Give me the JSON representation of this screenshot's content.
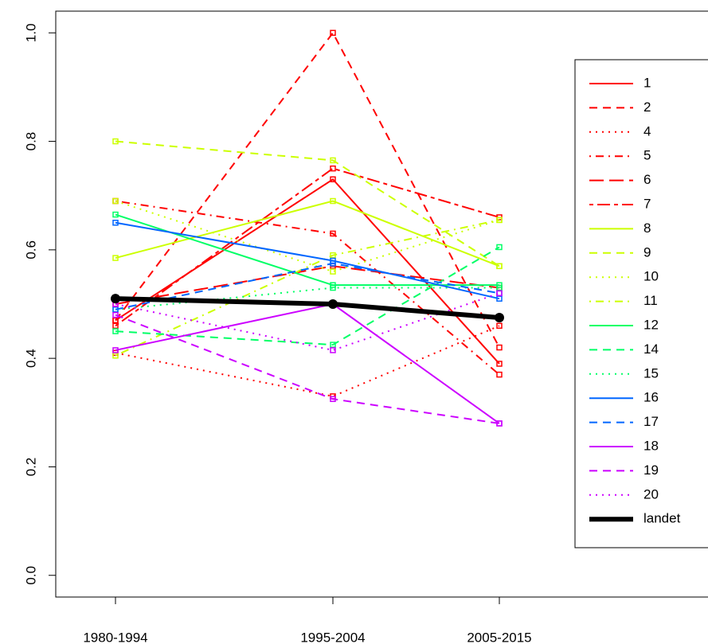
{
  "chart_data": {
    "type": "line",
    "categories": [
      "1980-1994",
      "1995-2004",
      "2005-2015"
    ],
    "ylim": [
      -0.04,
      1.04
    ],
    "yticks": [
      {
        "value": 0,
        "label": "0.0"
      },
      0.2,
      0.4,
      0.6,
      0.8,
      {
        "value": 1,
        "label": "1.0"
      }
    ],
    "legend": "right",
    "series": [
      {
        "name": "1",
        "color": "#ff0000",
        "dash": "solid",
        "values": [
          0.47,
          0.73,
          0.39
        ]
      },
      {
        "name": "2",
        "color": "#ff0000",
        "dash": "dashed",
        "values": [
          0.47,
          1.0,
          0.42
        ]
      },
      {
        "name": "4",
        "color": "#ff0000",
        "dash": "dotted",
        "values": [
          0.41,
          0.33,
          0.46
        ]
      },
      {
        "name": "5",
        "color": "#ff0000",
        "dash": "dotdash",
        "values": [
          0.69,
          0.63,
          0.37
        ]
      },
      {
        "name": "6",
        "color": "#ff0000",
        "dash": "longdash",
        "values": [
          0.5,
          0.57,
          0.53
        ]
      },
      {
        "name": "7",
        "color": "#ff0000",
        "dash": "twodash",
        "values": [
          0.46,
          0.75,
          0.66
        ]
      },
      {
        "name": "8",
        "color": "#ccff00",
        "dash": "solid",
        "values": [
          0.585,
          0.69,
          0.57
        ]
      },
      {
        "name": "9",
        "color": "#ccff00",
        "dash": "dashed",
        "values": [
          0.8,
          0.765,
          0.57
        ]
      },
      {
        "name": "10",
        "color": "#ccff00",
        "dash": "dotted",
        "values": [
          0.69,
          0.56,
          0.655
        ]
      },
      {
        "name": "11",
        "color": "#ccff00",
        "dash": "dotdash",
        "values": [
          0.405,
          0.59,
          0.655
        ]
      },
      {
        "name": "12",
        "color": "#00ff66",
        "dash": "solid",
        "values": [
          0.665,
          0.535,
          0.535
        ]
      },
      {
        "name": "14",
        "color": "#00ff66",
        "dash": "dashed",
        "values": [
          0.45,
          0.425,
          0.605
        ]
      },
      {
        "name": "15",
        "color": "#00ff66",
        "dash": "dotted",
        "values": [
          0.49,
          0.53,
          0.53
        ]
      },
      {
        "name": "16",
        "color": "#0066ff",
        "dash": "solid",
        "values": [
          0.65,
          0.58,
          0.51
        ]
      },
      {
        "name": "17",
        "color": "#0066ff",
        "dash": "dashed",
        "values": [
          0.49,
          0.575,
          0.52
        ]
      },
      {
        "name": "18",
        "color": "#cc00ff",
        "dash": "solid",
        "values": [
          0.415,
          0.5,
          0.28
        ]
      },
      {
        "name": "19",
        "color": "#cc00ff",
        "dash": "dashed",
        "values": [
          0.48,
          0.325,
          0.28
        ]
      },
      {
        "name": "20",
        "color": "#cc00ff",
        "dash": "dotted",
        "values": [
          0.5,
          0.415,
          0.52
        ]
      },
      {
        "name": "landet",
        "color": "#000000",
        "dash": "solid",
        "width": "thick",
        "values": [
          0.51,
          0.5,
          0.475
        ]
      }
    ]
  }
}
